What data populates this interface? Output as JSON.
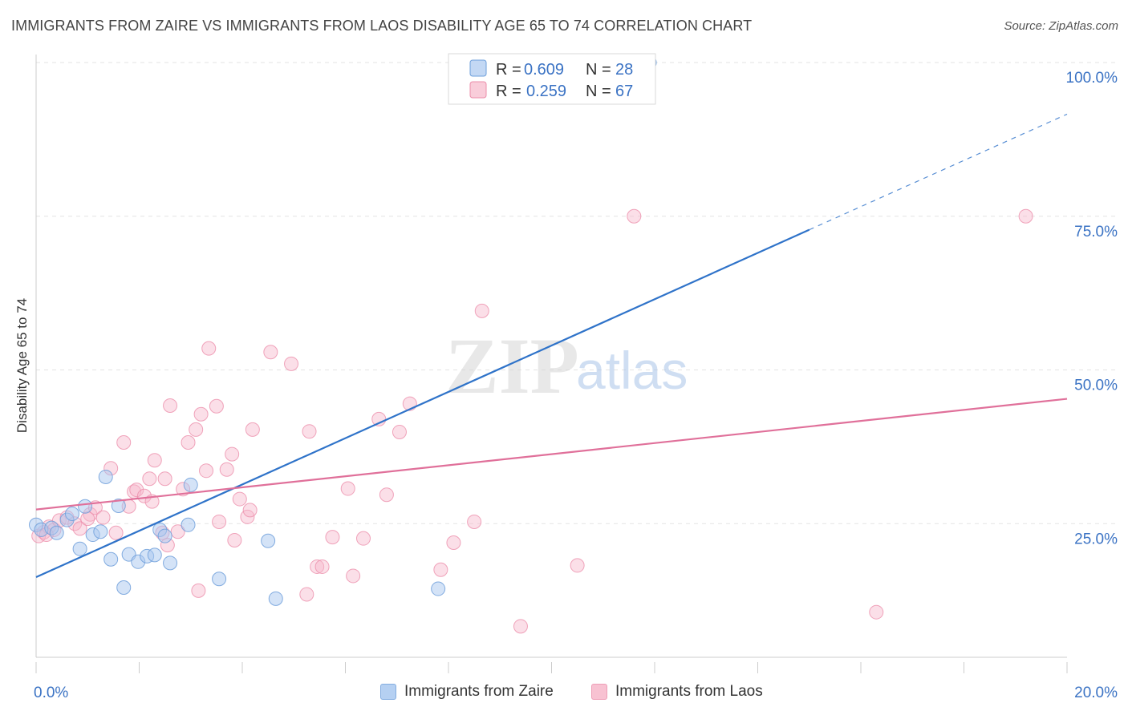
{
  "title": "IMMIGRANTS FROM ZAIRE VS IMMIGRANTS FROM LAOS DISABILITY AGE 65 TO 74 CORRELATION CHART",
  "source": "Source: ZipAtlas.com",
  "watermark": {
    "zip": "ZIP",
    "atlas": "atlas"
  },
  "legend": {
    "items": [
      {
        "r_label": "R =",
        "r_value": "0.609",
        "n_label": "N =",
        "n_value": "28"
      },
      {
        "r_label": "R =",
        "r_value": "0.259",
        "n_label": "N =",
        "n_value": "67"
      }
    ]
  },
  "bottom_legend": {
    "zaire": "Immigrants from Zaire",
    "laos": "Immigrants from Laos"
  },
  "colors": {
    "zaire_fill": "#a9c8f0",
    "zaire_stroke": "#6e9fdb",
    "zaire_line": "#2f73c9",
    "laos_fill": "#f7b8cb",
    "laos_stroke": "#ec8eab",
    "laos_line": "#e0709a",
    "tick_text": "#3b73c4"
  },
  "chart_data": {
    "type": "scatter",
    "title": "IMMIGRANTS FROM ZAIRE VS IMMIGRANTS FROM LAOS DISABILITY AGE 65 TO 74 CORRELATION CHART",
    "xlabel": "",
    "ylabel": "Disability Age 65 to 74",
    "xlim": [
      0,
      20
    ],
    "ylim": [
      0,
      100
    ],
    "x_tick_labels": [
      "0.0%",
      "20.0%"
    ],
    "y_ticks": [
      25,
      50,
      75,
      100
    ],
    "y_tick_labels": [
      "25.0%",
      "50.0%",
      "75.0%",
      "100.0%"
    ],
    "grid": true,
    "legend_position": "top-center",
    "series": [
      {
        "name": "Immigrants from Zaire",
        "R": 0.609,
        "N": 28,
        "trend": {
          "x0": 0,
          "y0": 16.3,
          "x1": 15.0,
          "y1": 72.8,
          "dashed_to_x": 20,
          "dashed_to_y": 91.6
        },
        "points": [
          [
            0.0,
            24.8
          ],
          [
            0.1,
            24.0
          ],
          [
            0.3,
            24.3
          ],
          [
            0.4,
            23.5
          ],
          [
            0.6,
            25.6
          ],
          [
            0.7,
            26.6
          ],
          [
            0.85,
            20.9
          ],
          [
            0.95,
            27.8
          ],
          [
            1.1,
            23.2
          ],
          [
            1.25,
            23.7
          ],
          [
            1.35,
            32.6
          ],
          [
            1.45,
            19.2
          ],
          [
            1.6,
            27.9
          ],
          [
            1.7,
            14.6
          ],
          [
            1.8,
            20.0
          ],
          [
            1.98,
            18.8
          ],
          [
            2.15,
            19.7
          ],
          [
            2.3,
            19.9
          ],
          [
            2.4,
            24.0
          ],
          [
            2.5,
            23.0
          ],
          [
            2.6,
            18.6
          ],
          [
            2.95,
            24.8
          ],
          [
            3.0,
            31.3
          ],
          [
            3.55,
            16.0
          ],
          [
            4.5,
            22.2
          ],
          [
            4.65,
            12.8
          ],
          [
            7.8,
            14.4
          ],
          [
            11.9,
            100.0
          ]
        ]
      },
      {
        "name": "Immigrants from Laos",
        "R": 0.259,
        "N": 67,
        "trend": {
          "x0": 0,
          "y0": 27.3,
          "x1": 20,
          "y1": 45.3
        },
        "points": [
          [
            0.05,
            23.0
          ],
          [
            0.15,
            23.6
          ],
          [
            0.25,
            24.5
          ],
          [
            0.35,
            24.0
          ],
          [
            0.45,
            25.5
          ],
          [
            0.6,
            26.0
          ],
          [
            0.75,
            25.0
          ],
          [
            0.85,
            24.2
          ],
          [
            1.05,
            26.5
          ],
          [
            1.15,
            27.6
          ],
          [
            1.3,
            26.0
          ],
          [
            1.45,
            34.0
          ],
          [
            1.55,
            23.5
          ],
          [
            1.7,
            38.2
          ],
          [
            1.8,
            27.8
          ],
          [
            1.9,
            30.2
          ],
          [
            1.95,
            30.5
          ],
          [
            2.1,
            29.5
          ],
          [
            2.2,
            32.3
          ],
          [
            2.25,
            28.6
          ],
          [
            2.3,
            35.3
          ],
          [
            2.45,
            23.5
          ],
          [
            2.5,
            32.3
          ],
          [
            2.55,
            21.5
          ],
          [
            2.6,
            44.2
          ],
          [
            2.75,
            23.7
          ],
          [
            2.85,
            30.6
          ],
          [
            2.95,
            38.2
          ],
          [
            3.1,
            40.3
          ],
          [
            3.15,
            14.1
          ],
          [
            3.2,
            42.8
          ],
          [
            3.3,
            33.6
          ],
          [
            3.35,
            53.5
          ],
          [
            3.5,
            44.1
          ],
          [
            3.55,
            25.3
          ],
          [
            3.7,
            33.8
          ],
          [
            3.8,
            36.3
          ],
          [
            3.85,
            22.3
          ],
          [
            3.95,
            29.0
          ],
          [
            4.1,
            26.1
          ],
          [
            4.15,
            27.2
          ],
          [
            4.2,
            40.3
          ],
          [
            4.55,
            52.9
          ],
          [
            4.95,
            51.0
          ],
          [
            5.25,
            13.5
          ],
          [
            5.3,
            40.0
          ],
          [
            5.45,
            18.0
          ],
          [
            5.55,
            18.0
          ],
          [
            5.75,
            22.8
          ],
          [
            6.05,
            30.7
          ],
          [
            6.15,
            16.5
          ],
          [
            6.35,
            22.6
          ],
          [
            6.65,
            42.0
          ],
          [
            6.8,
            29.7
          ],
          [
            7.05,
            39.9
          ],
          [
            7.25,
            44.5
          ],
          [
            7.85,
            17.5
          ],
          [
            8.1,
            21.9
          ],
          [
            8.5,
            25.3
          ],
          [
            8.65,
            59.6
          ],
          [
            9.4,
            8.3
          ],
          [
            10.5,
            18.2
          ],
          [
            11.6,
            75.0
          ],
          [
            16.3,
            10.6
          ],
          [
            19.2,
            75.0
          ],
          [
            0.2,
            23.2
          ],
          [
            1.0,
            25.8
          ]
        ]
      }
    ]
  }
}
